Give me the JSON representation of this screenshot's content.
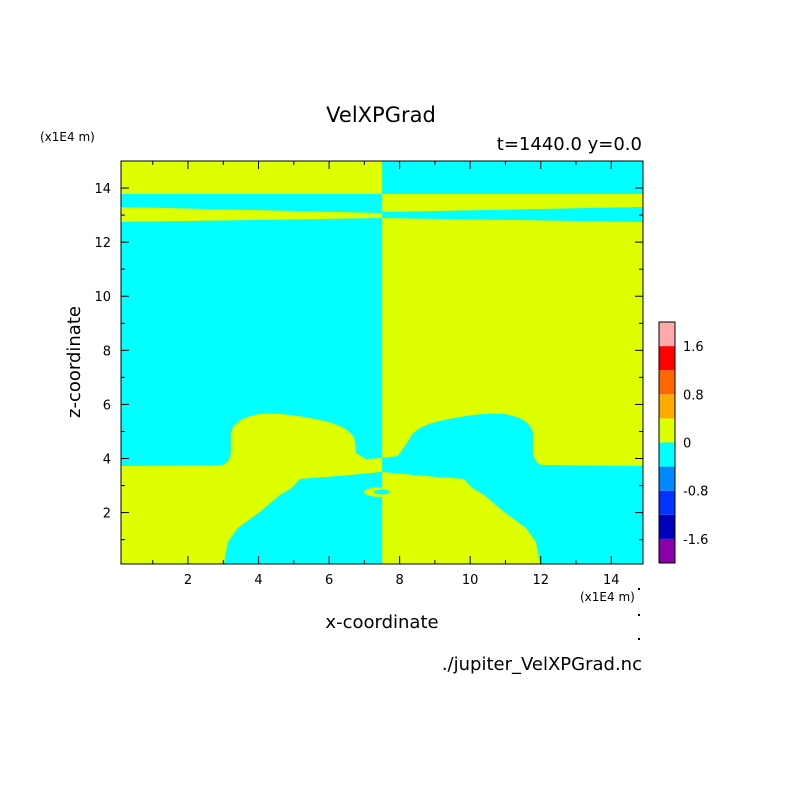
{
  "chart_data": {
    "type": "heatmap",
    "title": "VelXPGrad",
    "subtitle": "t=1440.0 y=0.0",
    "xlabel": "x-coordinate",
    "ylabel": "z-coordinate",
    "x_scale_note": "(x1E4 m)",
    "y_scale_note": "(x1E4 m)",
    "source_file": "./jupiter_VelXPGrad.nc",
    "xlim": [
      0.1,
      14.9
    ],
    "ylim": [
      0.1,
      15.0
    ],
    "x_ticks": [
      2,
      4,
      6,
      8,
      10,
      12,
      14
    ],
    "y_ticks": [
      2,
      4,
      6,
      8,
      10,
      12,
      14
    ],
    "colorbar": {
      "range": [
        -2.0,
        2.0
      ],
      "levels": [
        -2.0,
        -1.6,
        -1.2,
        -0.8,
        -0.4,
        0,
        0.4,
        0.8,
        1.2,
        1.6,
        2.0
      ],
      "tick_labels": [
        "1.6",
        "0.8",
        "0",
        "-0.8",
        "-1.6"
      ],
      "tick_values": [
        1.6,
        0.8,
        0,
        -0.8,
        -1.6
      ],
      "colors": [
        "#8800aa",
        "#0000bb",
        "#0033ff",
        "#0088ff",
        "#00ffff",
        "#ddff00",
        "#ffaa00",
        "#ff6600",
        "#ff0000",
        "#ffaaaa"
      ]
    },
    "regions": {
      "negative_color": "#00ffff",
      "positive_color": "#ddff00",
      "description_values": [
        {
          "name": "left upper field",
          "x": [
            0.1,
            7.5
          ],
          "z": [
            3.7,
            12.7
          ],
          "sign": "negative"
        },
        {
          "name": "right upper field",
          "x": [
            7.5,
            14.9
          ],
          "z": [
            3.7,
            12.7
          ],
          "sign": "positive"
        },
        {
          "name": "top band left",
          "x": [
            0.1,
            7.5
          ],
          "z": [
            12.7,
            15.0
          ],
          "sign": "positive"
        },
        {
          "name": "top band right",
          "x": [
            7.5,
            14.9
          ],
          "z": [
            12.7,
            15.0
          ],
          "sign": "negative"
        }
      ]
    }
  }
}
